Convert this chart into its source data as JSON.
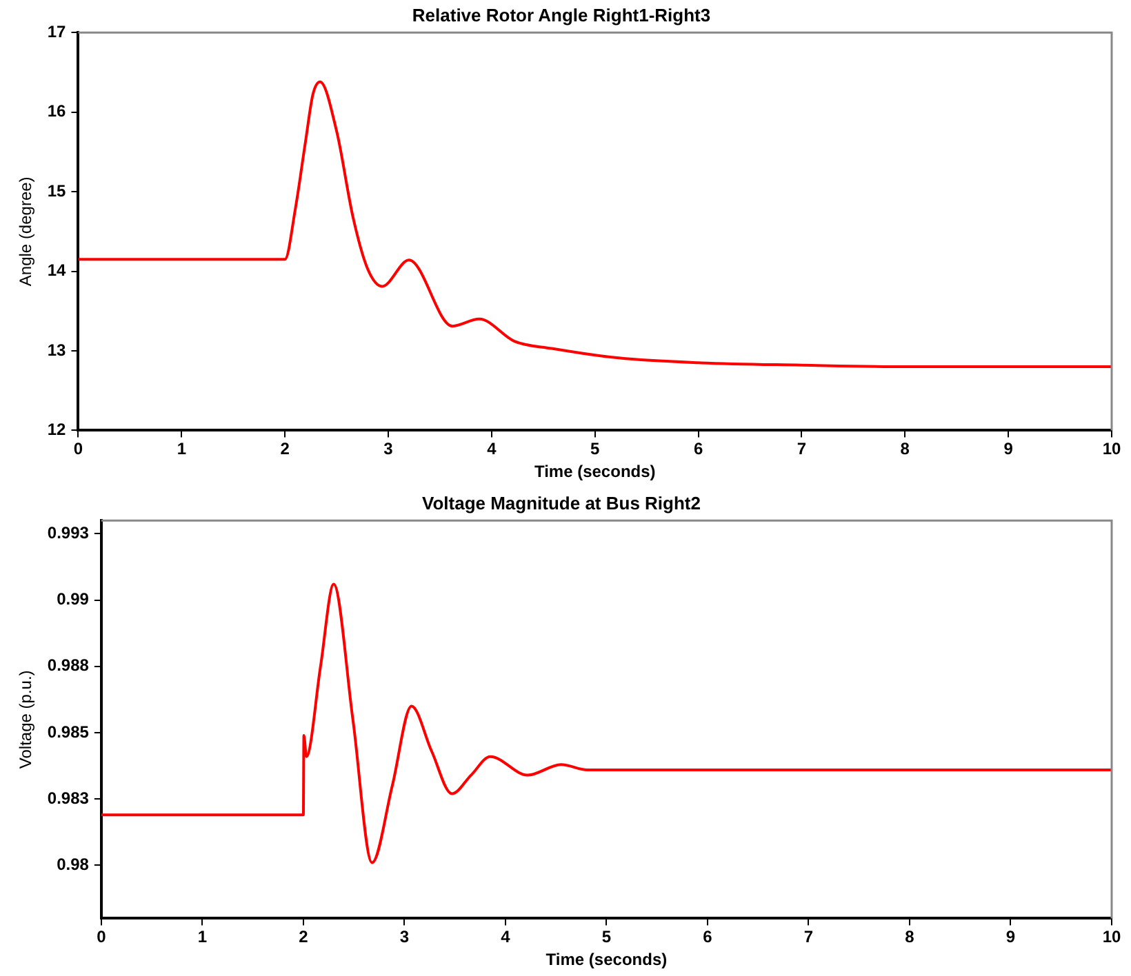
{
  "chart_data": [
    {
      "type": "line",
      "title": "Relative Rotor Angle Right1-Right3",
      "xlabel": "Time (seconds)",
      "ylabel": "Angle (degree)",
      "x": [
        0,
        2.0,
        2.1,
        2.2,
        2.27,
        2.34,
        2.5,
        2.66,
        2.8,
        2.94,
        3.2,
        3.62,
        3.88,
        4.22,
        4.58,
        5.23,
        6,
        7,
        8,
        9,
        10
      ],
      "series": [
        {
          "color": "#ff0000",
          "values": [
            14.15,
            14.15,
            14.78,
            15.64,
            16.22,
            16.38,
            15.76,
            14.67,
            14.03,
            13.81,
            14.14,
            13.31,
            13.4,
            13.12,
            13.03,
            12.91,
            12.85,
            12.82,
            12.8,
            12.8,
            12.8
          ]
        }
      ],
      "xlim": [
        0,
        10
      ],
      "xticks": [
        0,
        1,
        2,
        3,
        4,
        5,
        6,
        7,
        8,
        9,
        10
      ],
      "ylim": [
        12,
        17
      ],
      "yticks": [
        12,
        13,
        14,
        15,
        16,
        17
      ]
    },
    {
      "type": "line",
      "title": "Voltage Magnitude at Bus Right2",
      "xlabel": "Time (seconds)",
      "ylabel": "Voltage (p.u.)",
      "x": [
        0,
        2.0,
        2.005,
        2.03,
        2.17,
        2.3,
        2.49,
        2.68,
        2.88,
        3.07,
        3.27,
        3.47,
        3.66,
        3.85,
        4.22,
        4.55,
        4.81,
        5,
        6,
        7,
        8,
        9,
        10
      ],
      "series": [
        {
          "color": "#ff0000",
          "values": [
            0.9819,
            0.9819,
            0.9849,
            0.9841,
            0.9875,
            0.9906,
            0.9855,
            0.9801,
            0.983,
            0.986,
            0.9843,
            0.9827,
            0.9834,
            0.9841,
            0.9834,
            0.9838,
            0.9836,
            0.9836,
            0.9836,
            0.9836,
            0.9836,
            0.9836,
            0.9836
          ]
        }
      ],
      "xlim": [
        0,
        10
      ],
      "xticks": [
        0,
        1,
        2,
        3,
        4,
        5,
        6,
        7,
        8,
        9,
        10
      ],
      "ylim": [
        0.978,
        0.993
      ],
      "yticks": [
        {
          "value": 0.98,
          "label": "0.98"
        },
        {
          "value": 0.9825,
          "label": "0.983"
        },
        {
          "value": 0.985,
          "label": "0.985"
        },
        {
          "value": 0.9875,
          "label": "0.988"
        },
        {
          "value": 0.99,
          "label": "0.99"
        },
        {
          "value": 0.9925,
          "label": "0.993"
        }
      ]
    }
  ]
}
